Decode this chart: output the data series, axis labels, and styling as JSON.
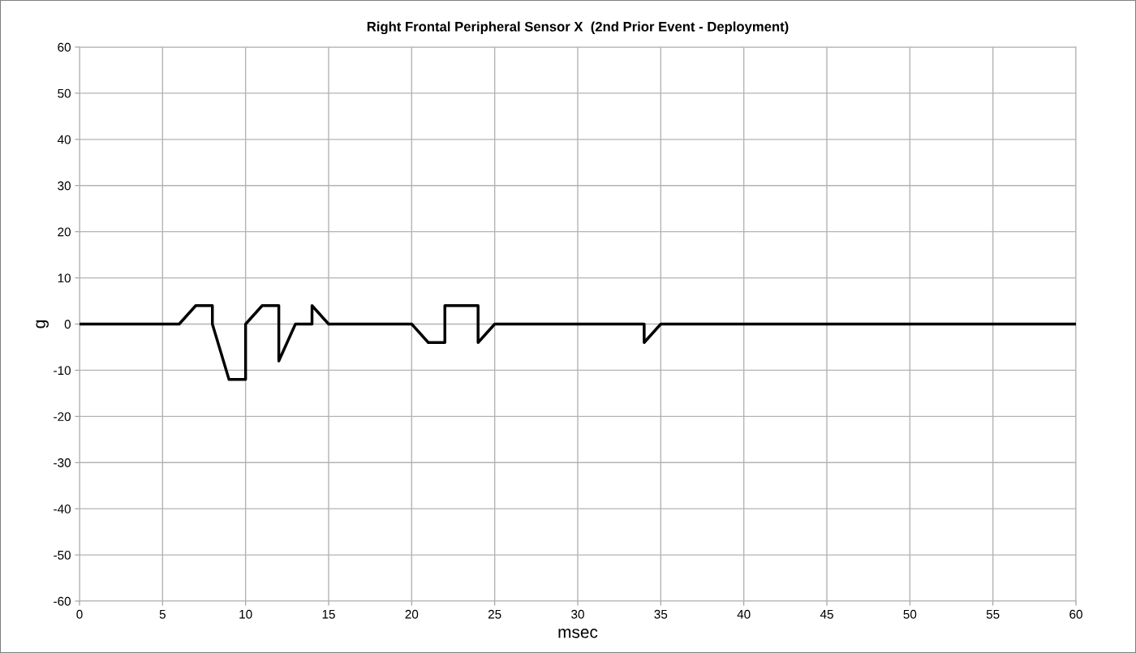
{
  "chart_data": {
    "type": "line",
    "title": "Right Frontal Peripheral Sensor X  (2nd Prior Event - Deployment)",
    "xlabel": "msec",
    "ylabel": "g",
    "x": [
      0,
      6,
      7,
      8,
      8,
      9,
      10,
      10,
      11,
      12,
      12,
      13,
      14,
      14,
      15,
      20,
      21,
      22,
      22,
      23,
      24,
      24,
      25,
      34,
      34,
      35,
      60
    ],
    "series": [
      {
        "color": "#000000",
        "values": [
          0,
          0,
          4,
          4,
          0,
          -12,
          -12,
          0,
          4,
          4,
          -8,
          0,
          0,
          4,
          0,
          0,
          -4,
          -4,
          4,
          4,
          4,
          -4,
          0,
          0,
          -4,
          0,
          0
        ]
      }
    ],
    "xlim": [
      0,
      60
    ],
    "xticks": [
      0,
      5,
      10,
      15,
      20,
      25,
      30,
      35,
      40,
      45,
      50,
      55,
      60
    ],
    "ylim": [
      -60,
      60
    ],
    "yticks": [
      -60,
      -50,
      -40,
      -30,
      -20,
      -10,
      0,
      10,
      20,
      30,
      40,
      50,
      60
    ],
    "grid": true,
    "marker": "none",
    "line_style": "solid"
  }
}
